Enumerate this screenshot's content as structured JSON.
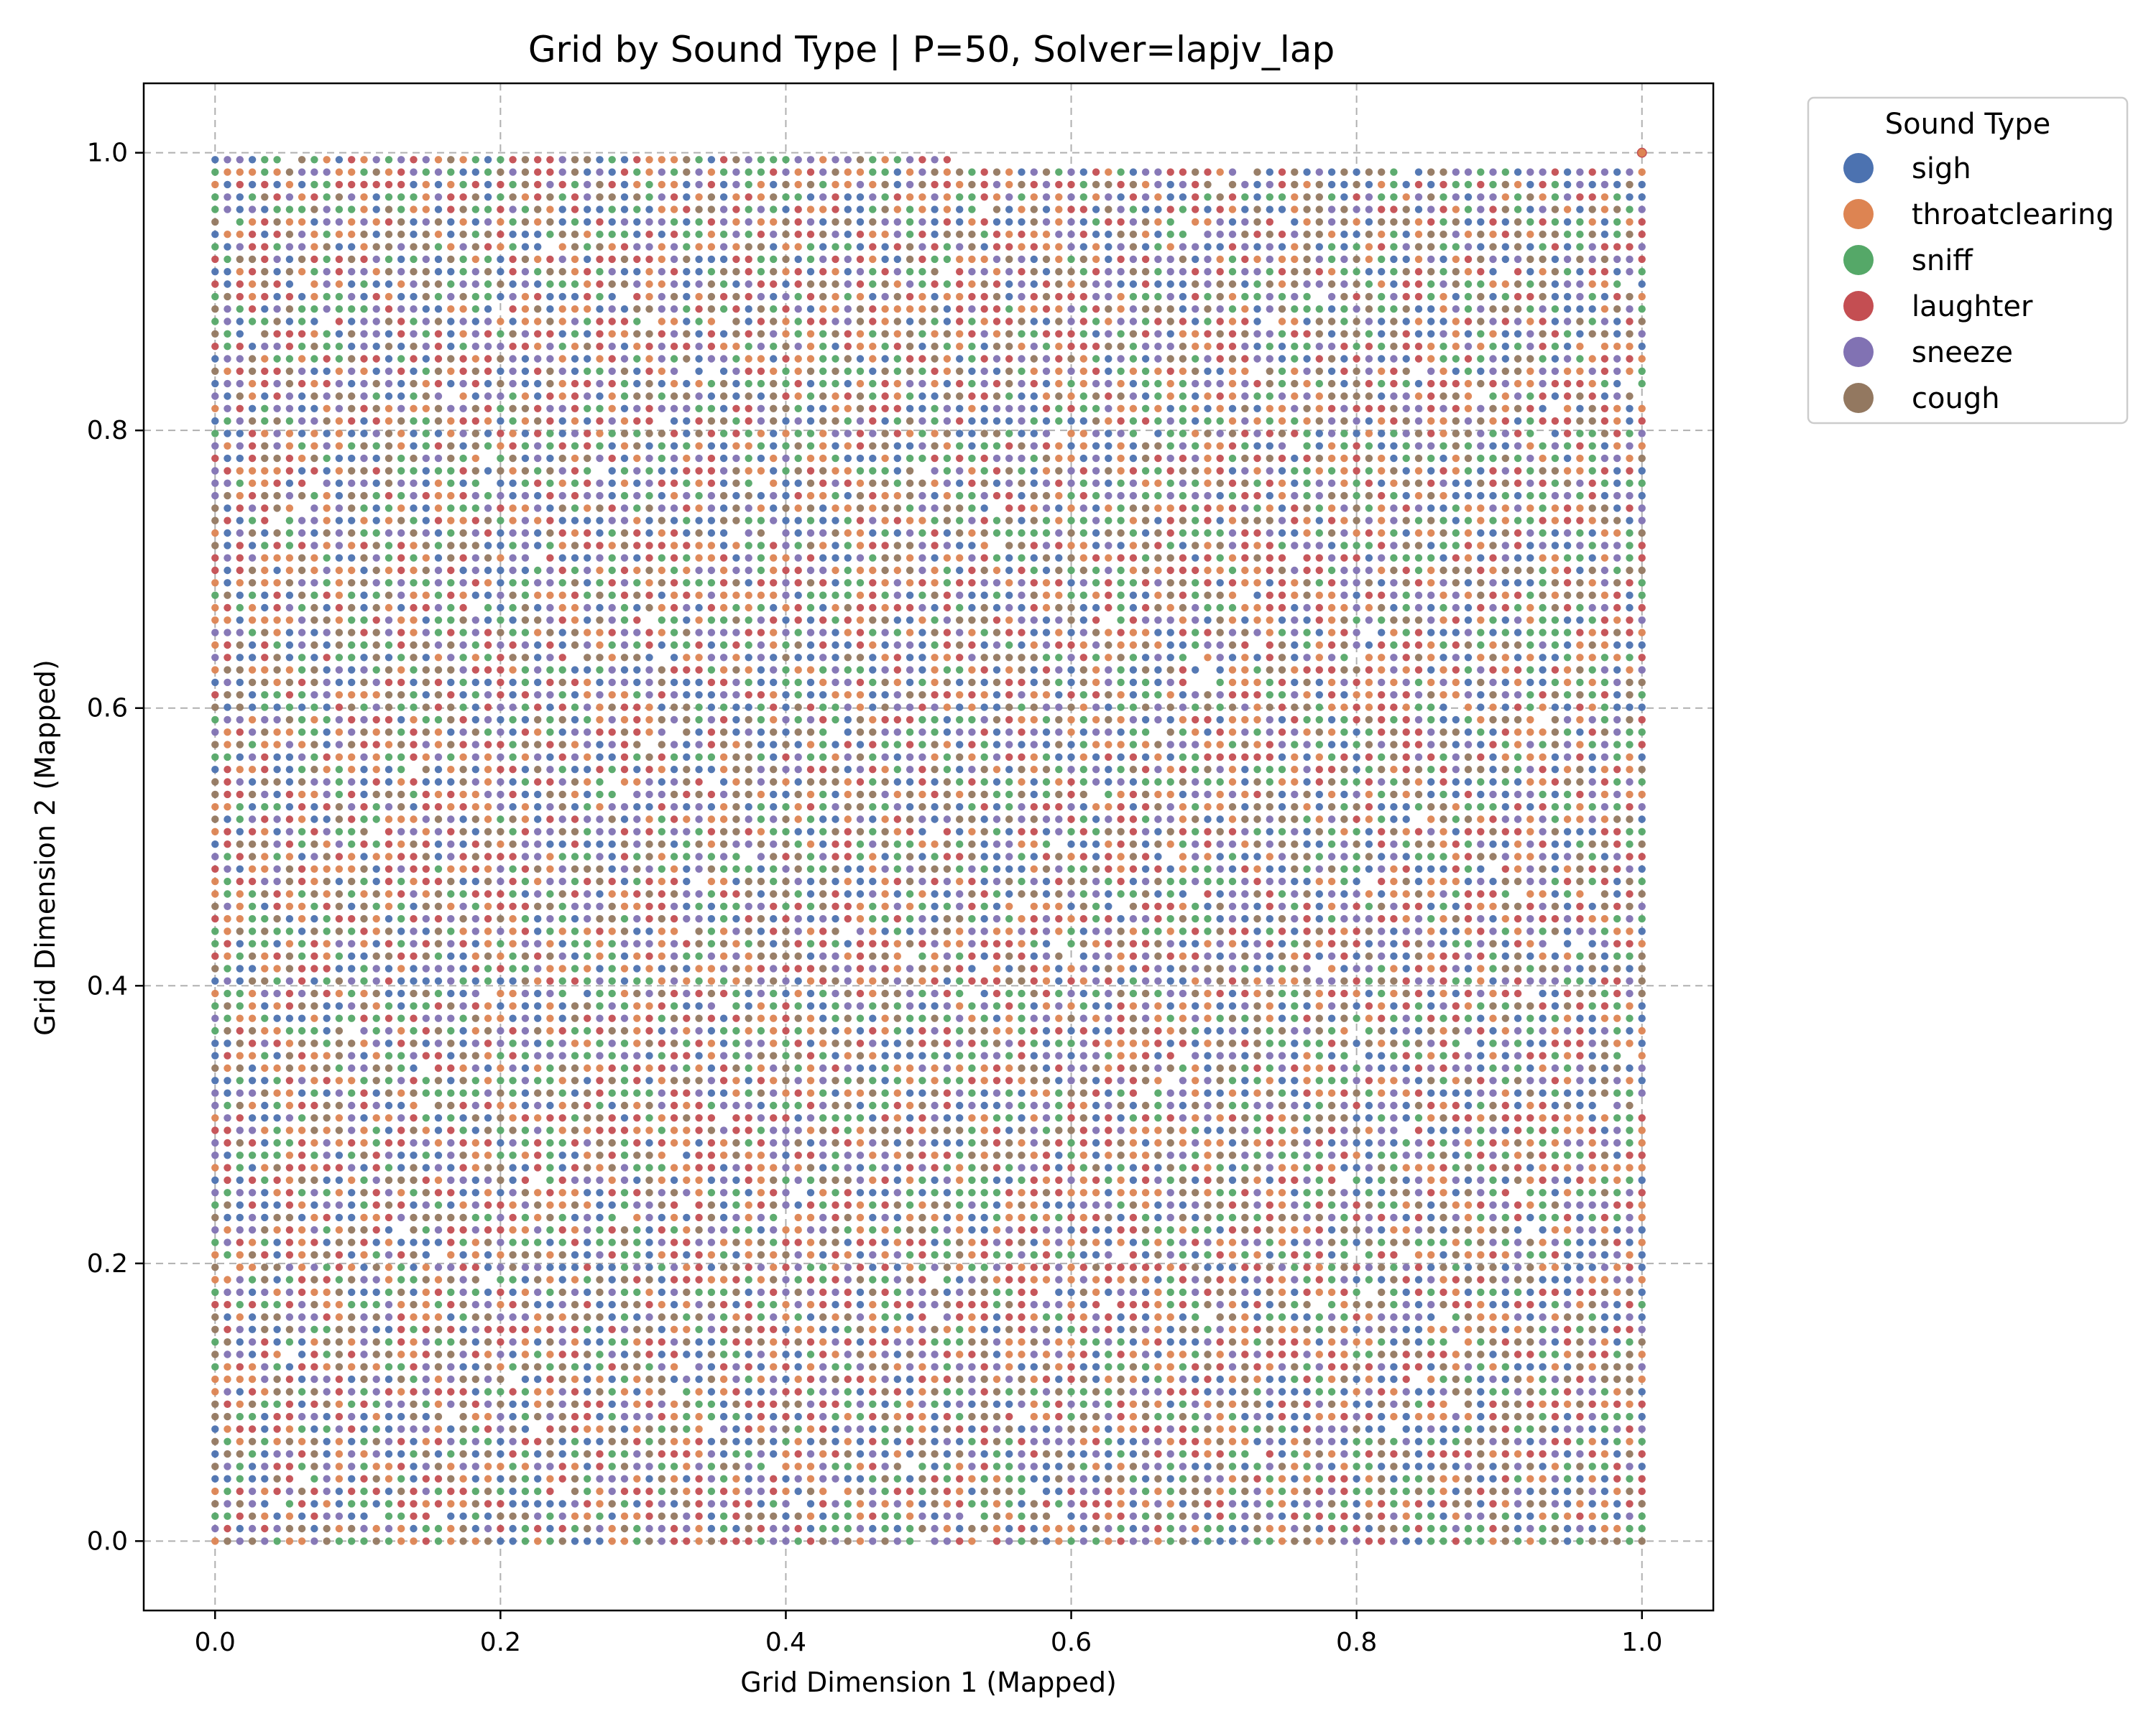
{
  "chart_data": {
    "type": "scatter",
    "title": "Grid by Sound Type | P=50, Solver=lapjv_lap",
    "xlabel": "Grid Dimension 1 (Mapped)",
    "ylabel": "Grid Dimension 2 (Mapped)",
    "xlim": [
      -0.05,
      1.05
    ],
    "ylim": [
      -0.05,
      1.05
    ],
    "x_ticks": [
      "0.0",
      "0.2",
      "0.4",
      "0.6",
      "0.8",
      "1.0"
    ],
    "y_ticks": [
      "0.0",
      "0.2",
      "0.4",
      "0.6",
      "0.8",
      "1.0"
    ],
    "grid": true,
    "grid_style": "dashed",
    "grid_points": {
      "x_min": 0.0,
      "x_max": 1.0,
      "y_min": 0.0,
      "y_max": 0.995,
      "approx_columns": 116,
      "approx_rows": 112
    },
    "legend": {
      "title": "Sound Type",
      "placement": "outside-top-right",
      "entries": [
        {
          "name": "sigh",
          "color": "#4c72b0"
        },
        {
          "name": "throatclearing",
          "color": "#dd8452"
        },
        {
          "name": "sniff",
          "color": "#55a868"
        },
        {
          "name": "laughter",
          "color": "#c44e52"
        },
        {
          "name": "sneeze",
          "color": "#8172b3"
        },
        {
          "name": "cough",
          "color": "#937860"
        }
      ]
    },
    "series": [
      {
        "name": "sigh",
        "color": "#4c72b0"
      },
      {
        "name": "throatclearing",
        "color": "#dd8452"
      },
      {
        "name": "sniff",
        "color": "#55a868"
      },
      {
        "name": "laughter",
        "color": "#c44e52"
      },
      {
        "name": "sneeze",
        "color": "#8172b3"
      },
      {
        "name": "cough",
        "color": "#937860"
      }
    ],
    "outlier_point": {
      "x": 1.0,
      "y": 1.0,
      "series": "throatclearing"
    }
  }
}
